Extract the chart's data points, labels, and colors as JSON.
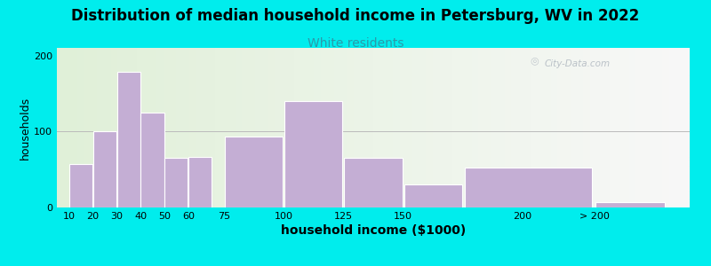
{
  "title": "Distribution of median household income in Petersburg, WV in 2022",
  "subtitle": "White residents",
  "xlabel": "household income ($1000)",
  "ylabel": "households",
  "background_outer": "#00EDED",
  "bar_color": "#c4aed4",
  "bar_edge_color": "#ffffff",
  "title_fontsize": 12,
  "subtitle_fontsize": 10,
  "subtitle_color": "#2a9aaa",
  "ylabel_fontsize": 9,
  "xlabel_fontsize": 10,
  "tick_fontsize": 8,
  "categories": [
    "10",
    "20",
    "30",
    "40",
    "50",
    "60",
    "75",
    "100",
    "125",
    "150",
    "200",
    "> 200"
  ],
  "values": [
    57,
    100,
    178,
    125,
    65,
    67,
    93,
    140,
    65,
    30,
    52,
    7
  ],
  "bar_lefts": [
    10,
    20,
    30,
    40,
    50,
    60,
    75,
    100,
    125,
    150,
    175,
    230
  ],
  "bar_widths": [
    10,
    10,
    10,
    10,
    10,
    10,
    25,
    25,
    25,
    25,
    55,
    30
  ],
  "xtick_positions": [
    10,
    20,
    30,
    40,
    50,
    60,
    75,
    100,
    125,
    150,
    200,
    230
  ],
  "xtick_labels": [
    "10",
    "20",
    "30",
    "40",
    "50",
    "60",
    "75",
    "100",
    "125",
    "150",
    "200",
    "> 200"
  ],
  "xlim": [
    5,
    270
  ],
  "ylim": [
    0,
    210
  ],
  "yticks": [
    0,
    100,
    200
  ],
  "hline_y": 100,
  "watermark": "City-Data.com",
  "bg_left_color": "#e0f0d8",
  "bg_right_color": "#f8f8f8"
}
